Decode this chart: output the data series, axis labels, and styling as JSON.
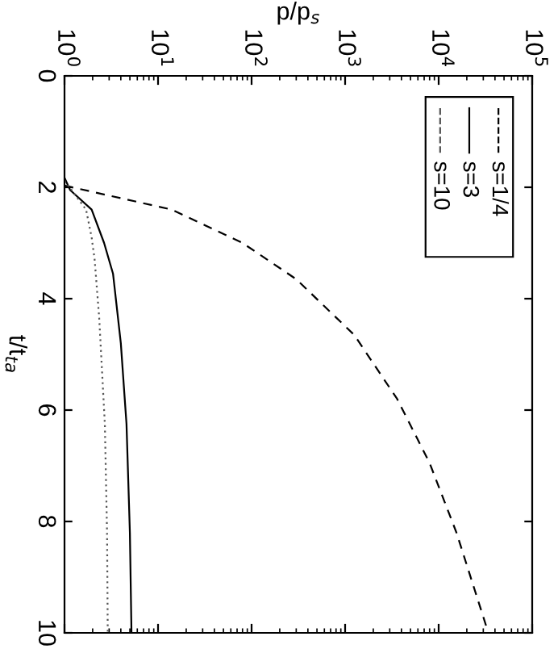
{
  "chart_data": {
    "type": "line",
    "xlabel": "p/p$_{s}$",
    "ylabel": "t/t$_{ta}$",
    "log": "x",
    "xlim": [
      1,
      100000
    ],
    "xticks": [
      {
        "value": 1,
        "label": "10$^{0}$"
      },
      {
        "value": 10,
        "label": "10$^{1}$"
      },
      {
        "value": 100,
        "label": "10$^{2}$"
      },
      {
        "value": 1000,
        "label": "10$^{3}$"
      },
      {
        "value": 10000,
        "label": "10$^{4}$"
      },
      {
        "value": 100000,
        "label": "10$^{5}$"
      }
    ],
    "ylim": [
      10,
      0
    ],
    "yticks": [
      0,
      2,
      4,
      6,
      8,
      10
    ],
    "legend": "top right",
    "series": [
      {
        "name": "s=1/4",
        "color": "#000000",
        "line_style": "dashed",
        "x": [
          1,
          14,
          80,
          300,
          1250,
          3600,
          8000,
          15500,
          34000
        ],
        "values": [
          1.97,
          2.4,
          3.0,
          3.65,
          4.65,
          5.8,
          6.95,
          8.2,
          10
        ]
      },
      {
        "name": "s=3",
        "color": "#000000",
        "line_style": "solid",
        "x": [
          1,
          1.15,
          1.95,
          2.65,
          3.3,
          4.0,
          4.6,
          5.0,
          5.2
        ],
        "values": [
          1.83,
          2.05,
          2.4,
          3.0,
          3.55,
          4.8,
          6.25,
          8.2,
          10
        ]
      },
      {
        "name": "s=10",
        "color": "#555555",
        "line_style": "dotted",
        "x": [
          1,
          1.7,
          1.95,
          2.1,
          2.35,
          2.7,
          2.85,
          2.9
        ],
        "values": [
          1.88,
          2.4,
          2.9,
          3.3,
          4.35,
          6.25,
          8.2,
          10
        ]
      }
    ]
  }
}
